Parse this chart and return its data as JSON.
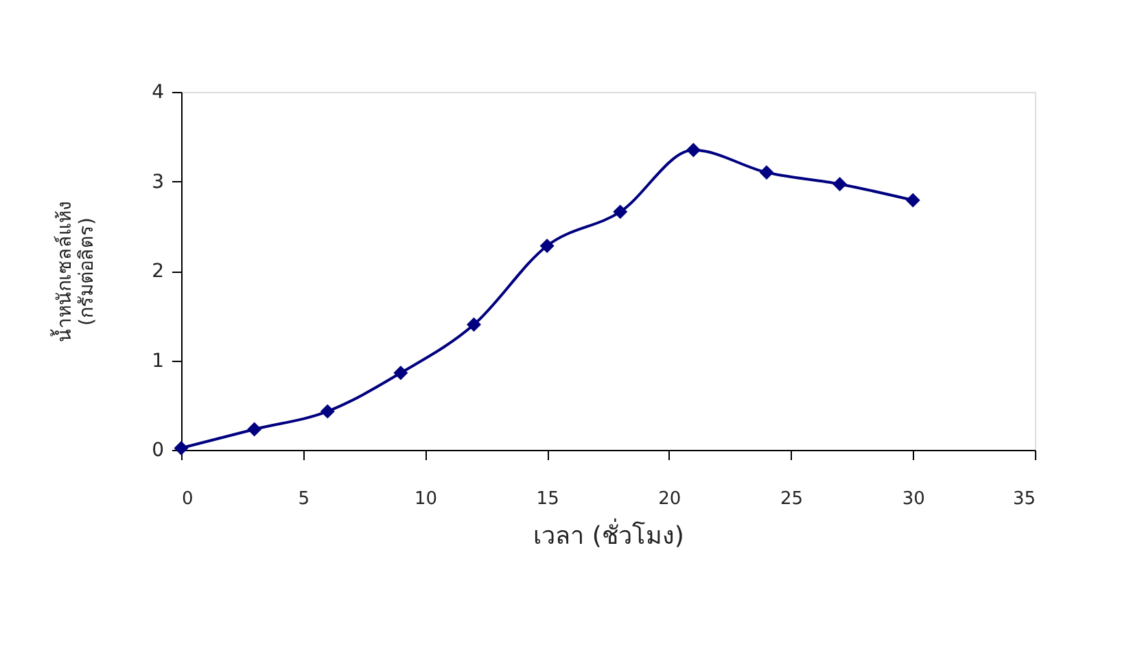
{
  "chart_data": {
    "type": "line",
    "xlabel": "เวลา (ชั่วโมง)",
    "ylabel": "น้ำหนักเซลล์แห้ง\n(กรัมต่อลิตร)",
    "x": [
      0,
      3,
      6,
      9,
      12,
      15,
      18,
      21,
      24,
      27,
      30
    ],
    "series": [
      {
        "color": "#000080",
        "values": [
          0.02,
          0.23,
          0.43,
          0.86,
          1.4,
          2.28,
          2.66,
          3.35,
          3.1,
          2.97,
          2.79
        ]
      }
    ],
    "xlim": [
      0,
      35
    ],
    "xticks": [
      0,
      5,
      10,
      15,
      20,
      25,
      30,
      35
    ],
    "ylim": [
      0,
      4
    ],
    "yticks": [
      0,
      1,
      2,
      3,
      4
    ],
    "grid": false,
    "legend": false,
    "marker": "diamond",
    "line_style": "solid"
  }
}
